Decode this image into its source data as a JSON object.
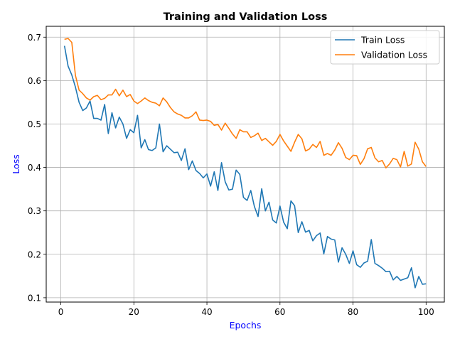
{
  "chart_data": {
    "type": "line",
    "title": "Training and Validation Loss",
    "xlabel": "Epochs",
    "ylabel": "Loss",
    "label_color": "#0000ff",
    "xlim": [
      -4,
      105
    ],
    "ylim": [
      0.09,
      0.725
    ],
    "xticks": [
      0,
      20,
      40,
      60,
      80,
      100
    ],
    "yticks": [
      0.1,
      0.2,
      0.3,
      0.4,
      0.5,
      0.6,
      0.7
    ],
    "ytick_labels": [
      "0.1",
      "0.2",
      "0.3",
      "0.4",
      "0.5",
      "0.6",
      "0.7"
    ],
    "grid": true,
    "legend_position": "top-right",
    "x": [
      1,
      2,
      3,
      4,
      5,
      6,
      7,
      8,
      9,
      10,
      11,
      12,
      13,
      14,
      15,
      16,
      17,
      18,
      19,
      20,
      21,
      22,
      23,
      24,
      25,
      26,
      27,
      28,
      29,
      30,
      31,
      32,
      33,
      34,
      35,
      36,
      37,
      38,
      39,
      40,
      41,
      42,
      43,
      44,
      45,
      46,
      47,
      48,
      49,
      50,
      51,
      52,
      53,
      54,
      55,
      56,
      57,
      58,
      59,
      60,
      61,
      62,
      63,
      64,
      65,
      66,
      67,
      68,
      69,
      70,
      71,
      72,
      73,
      74,
      75,
      76,
      77,
      78,
      79,
      80,
      81,
      82,
      83,
      84,
      85,
      86,
      87,
      88,
      89,
      90,
      91,
      92,
      93,
      94,
      95,
      96,
      97,
      98,
      99,
      100
    ],
    "series": [
      {
        "name": "Train Loss",
        "color": "#1f77b4",
        "values": [
          0.68,
          0.633,
          0.613,
          0.585,
          0.55,
          0.531,
          0.537,
          0.553,
          0.513,
          0.513,
          0.509,
          0.545,
          0.478,
          0.526,
          0.491,
          0.516,
          0.5,
          0.467,
          0.487,
          0.48,
          0.52,
          0.445,
          0.464,
          0.441,
          0.439,
          0.445,
          0.5,
          0.436,
          0.45,
          0.442,
          0.434,
          0.435,
          0.416,
          0.443,
          0.395,
          0.415,
          0.393,
          0.386,
          0.376,
          0.385,
          0.357,
          0.39,
          0.347,
          0.411,
          0.367,
          0.348,
          0.35,
          0.394,
          0.384,
          0.331,
          0.324,
          0.347,
          0.31,
          0.287,
          0.351,
          0.3,
          0.32,
          0.279,
          0.272,
          0.311,
          0.274,
          0.259,
          0.323,
          0.312,
          0.25,
          0.275,
          0.251,
          0.255,
          0.231,
          0.243,
          0.249,
          0.201,
          0.241,
          0.235,
          0.233,
          0.182,
          0.215,
          0.2,
          0.179,
          0.208,
          0.176,
          0.17,
          0.18,
          0.184,
          0.234,
          0.179,
          0.174,
          0.168,
          0.16,
          0.161,
          0.141,
          0.149,
          0.14,
          0.143,
          0.146,
          0.169,
          0.123,
          0.149,
          0.131,
          0.132
        ]
      },
      {
        "name": "Validation Loss",
        "color": "#ff7f0e",
        "values": [
          0.695,
          0.697,
          0.688,
          0.612,
          0.578,
          0.57,
          0.56,
          0.555,
          0.563,
          0.566,
          0.556,
          0.559,
          0.567,
          0.567,
          0.58,
          0.565,
          0.578,
          0.563,
          0.568,
          0.553,
          0.547,
          0.553,
          0.56,
          0.554,
          0.55,
          0.548,
          0.542,
          0.56,
          0.551,
          0.538,
          0.528,
          0.523,
          0.52,
          0.514,
          0.514,
          0.519,
          0.528,
          0.509,
          0.508,
          0.509,
          0.506,
          0.497,
          0.499,
          0.486,
          0.502,
          0.49,
          0.477,
          0.467,
          0.487,
          0.482,
          0.482,
          0.469,
          0.473,
          0.479,
          0.462,
          0.467,
          0.459,
          0.451,
          0.46,
          0.476,
          0.461,
          0.449,
          0.437,
          0.458,
          0.476,
          0.466,
          0.438,
          0.442,
          0.453,
          0.446,
          0.46,
          0.428,
          0.432,
          0.428,
          0.44,
          0.457,
          0.444,
          0.423,
          0.418,
          0.428,
          0.427,
          0.407,
          0.42,
          0.443,
          0.446,
          0.422,
          0.413,
          0.416,
          0.399,
          0.408,
          0.421,
          0.418,
          0.401,
          0.437,
          0.403,
          0.408,
          0.458,
          0.442,
          0.413,
          0.402
        ]
      }
    ]
  }
}
